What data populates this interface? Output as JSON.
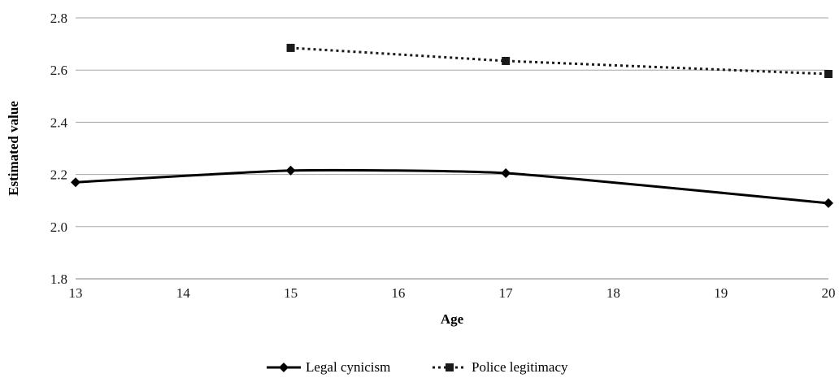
{
  "chart_data": {
    "type": "line",
    "title": "",
    "xlabel": "Age",
    "ylabel": "Estimated value",
    "x": [
      13,
      14,
      15,
      16,
      17,
      18,
      19,
      20
    ],
    "x_tick_labels": [
      "13",
      "14",
      "15",
      "16",
      "17",
      "18",
      "19",
      "20"
    ],
    "y_tick_labels": [
      "1.8",
      "2.0",
      "2.2",
      "2.4",
      "2.6",
      "2.8"
    ],
    "ylim": [
      1.8,
      2.8
    ],
    "grid": true,
    "legend_position": "bottom",
    "series": [
      {
        "name": "Legal cynicism",
        "x": [
          13,
          15,
          17,
          20
        ],
        "values": [
          2.17,
          2.215,
          2.205,
          2.09
        ],
        "line_style": "solid",
        "marker": "diamond",
        "smoothed": true,
        "color": "#000000"
      },
      {
        "name": "Police legitimacy",
        "x": [
          15,
          17,
          20
        ],
        "values": [
          2.685,
          2.635,
          2.585
        ],
        "line_style": "dotted",
        "marker": "square",
        "smoothed": false,
        "color": "#1a1a1a"
      }
    ]
  }
}
